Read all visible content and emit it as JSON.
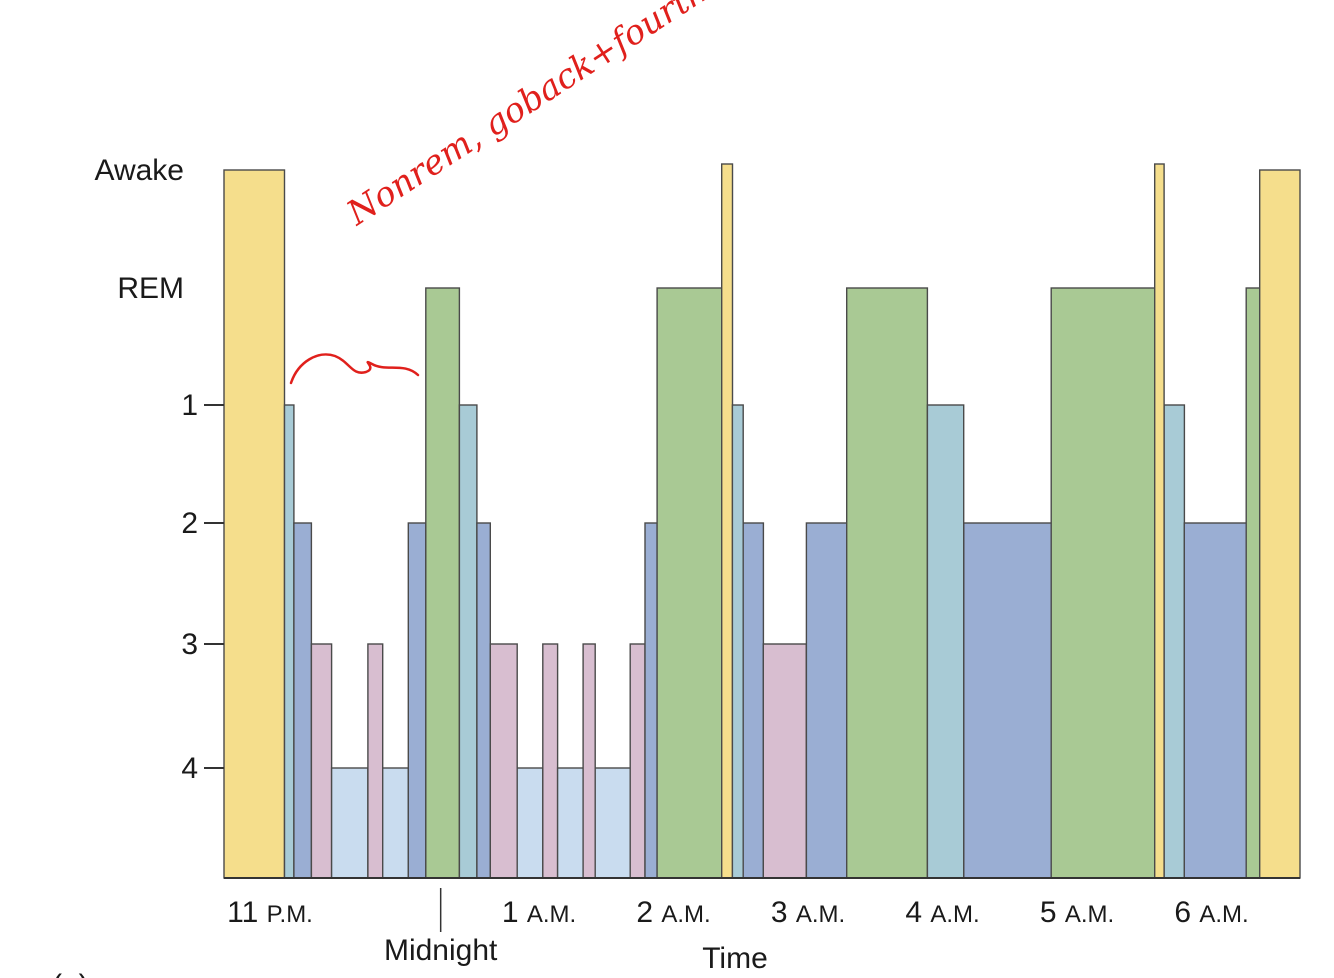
{
  "chart_data": {
    "type": "bar",
    "title": "",
    "xlabel": "Time",
    "ylabel": "",
    "y_levels": [
      {
        "stage": "Awake",
        "label": "Awake"
      },
      {
        "stage": "REM",
        "label": "REM"
      },
      {
        "stage": "1",
        "label": "1"
      },
      {
        "stage": "2",
        "label": "2"
      },
      {
        "stage": "3",
        "label": "3"
      },
      {
        "stage": "4",
        "label": "4"
      }
    ],
    "xlim": [
      0,
      8
    ],
    "x_ticks": [
      {
        "x": 0.0,
        "label": "11 P.M."
      },
      {
        "x": 2.0,
        "label": "1 A.M."
      },
      {
        "x": 3.0,
        "label": "2 A.M."
      },
      {
        "x": 4.0,
        "label": "3 A.M."
      },
      {
        "x": 5.0,
        "label": "4 A.M."
      },
      {
        "x": 6.0,
        "label": "5 A.M."
      },
      {
        "x": 7.0,
        "label": "6 A.M."
      }
    ],
    "midnight": {
      "x": 1.15,
      "label": "Midnight"
    },
    "segments": [
      {
        "start": 0.0,
        "end": 0.45,
        "stage": "Awake"
      },
      {
        "start": 0.45,
        "end": 0.52,
        "stage": "1"
      },
      {
        "start": 0.52,
        "end": 0.65,
        "stage": "2"
      },
      {
        "start": 0.65,
        "end": 0.8,
        "stage": "3"
      },
      {
        "start": 0.8,
        "end": 1.07,
        "stage": "4"
      },
      {
        "start": 1.07,
        "end": 1.18,
        "stage": "3"
      },
      {
        "start": 1.18,
        "end": 1.37,
        "stage": "4"
      },
      {
        "start": 1.37,
        "end": 1.5,
        "stage": "2"
      },
      {
        "start": 1.5,
        "end": 1.75,
        "stage": "REM"
      },
      {
        "start": 1.75,
        "end": 1.88,
        "stage": "1"
      },
      {
        "start": 1.88,
        "end": 1.98,
        "stage": "2"
      },
      {
        "start": 1.98,
        "end": 2.18,
        "stage": "3"
      },
      {
        "start": 2.18,
        "end": 2.37,
        "stage": "4"
      },
      {
        "start": 2.37,
        "end": 2.48,
        "stage": "3"
      },
      {
        "start": 2.48,
        "end": 2.67,
        "stage": "4"
      },
      {
        "start": 2.67,
        "end": 2.76,
        "stage": "3"
      },
      {
        "start": 2.76,
        "end": 3.02,
        "stage": "4"
      },
      {
        "start": 3.02,
        "end": 3.13,
        "stage": "3"
      },
      {
        "start": 3.13,
        "end": 3.22,
        "stage": "2"
      },
      {
        "start": 3.22,
        "end": 3.7,
        "stage": "REM"
      },
      {
        "start": 3.7,
        "end": 3.78,
        "stage": "Awake"
      },
      {
        "start": 3.78,
        "end": 3.86,
        "stage": "1"
      },
      {
        "start": 3.86,
        "end": 4.01,
        "stage": "2"
      },
      {
        "start": 4.01,
        "end": 4.33,
        "stage": "3"
      },
      {
        "start": 4.33,
        "end": 4.63,
        "stage": "2"
      },
      {
        "start": 4.63,
        "end": 5.23,
        "stage": "REM"
      },
      {
        "start": 5.23,
        "end": 5.5,
        "stage": "1"
      },
      {
        "start": 5.5,
        "end": 6.15,
        "stage": "2"
      },
      {
        "start": 6.15,
        "end": 6.92,
        "stage": "REM"
      },
      {
        "start": 6.92,
        "end": 6.99,
        "stage": "Awake"
      },
      {
        "start": 6.99,
        "end": 7.14,
        "stage": "1"
      },
      {
        "start": 7.14,
        "end": 7.6,
        "stage": "2"
      },
      {
        "start": 7.6,
        "end": 7.7,
        "stage": "REM"
      },
      {
        "start": 7.7,
        "end": 8.0,
        "stage": "Awake"
      }
    ],
    "colors": {
      "Awake": "#f5de8c",
      "REM": "#a9c994",
      "1": "#a8cbd6",
      "2": "#9aaed3",
      "3": "#d8bed0",
      "4": "#c9dcef"
    },
    "stroke": "#4a4a4a"
  },
  "annotation": {
    "text": "Nonrem, goback+fourth",
    "color": "#e0201c"
  },
  "panel_label": "(a)"
}
